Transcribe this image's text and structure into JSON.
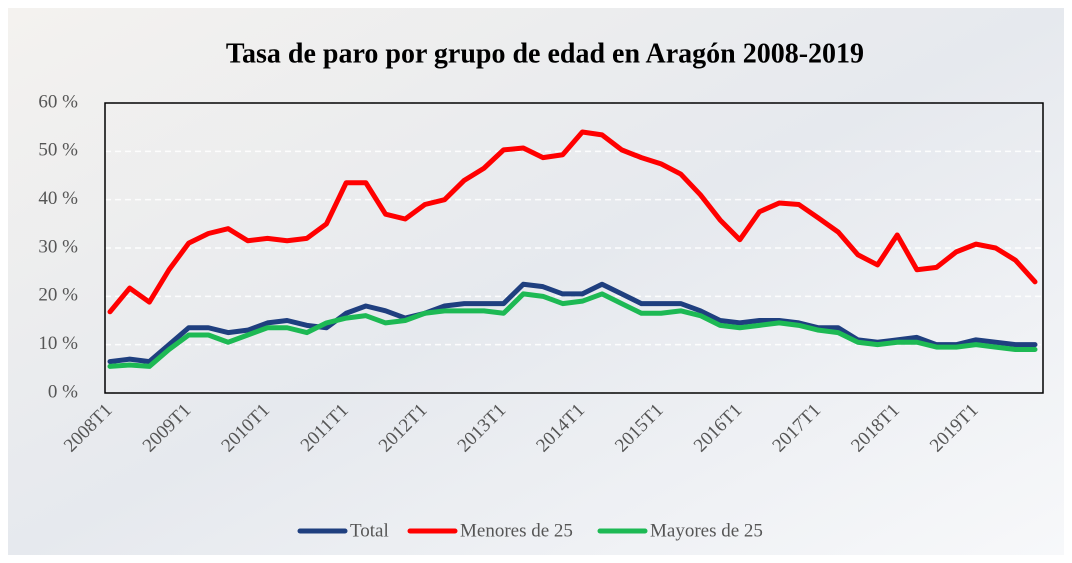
{
  "chart_data": {
    "type": "line",
    "title": "Tasa de paro por grupo de edad en Aragón 2008-2019",
    "categories": [
      "2008T1",
      null,
      null,
      null,
      "2009T1",
      null,
      null,
      null,
      "2010T1",
      null,
      null,
      null,
      "2011T1",
      null,
      null,
      null,
      "2012T1",
      null,
      null,
      null,
      "2013T1",
      null,
      null,
      null,
      "2014T1",
      null,
      null,
      null,
      "2015T1",
      null,
      null,
      null,
      "2016T1",
      null,
      null,
      null,
      "2017T1",
      null,
      null,
      null,
      "2018T1",
      null,
      null,
      null,
      "2019T1",
      null,
      null,
      null
    ],
    "series": [
      {
        "name": "Total",
        "color": "#1f3f7f",
        "values": [
          6.5,
          7,
          6.5,
          10,
          13.5,
          13.5,
          12.5,
          13,
          14.5,
          15,
          14,
          13.5,
          16.5,
          18,
          17,
          15.5,
          16.5,
          18,
          18.5,
          18.5,
          18.5,
          22.5,
          22,
          20.5,
          20.5,
          22.5,
          20.5,
          18.5,
          18.5,
          18.5,
          17,
          15,
          14.5,
          15,
          15,
          14.5,
          13.5,
          13.5,
          11,
          10.5,
          11,
          11.5,
          10,
          10,
          11,
          10.5,
          10,
          10
        ]
      },
      {
        "name": "Menores de 25",
        "color": "#ff0000",
        "values": [
          16.8,
          21.7,
          18.8,
          25.5,
          31,
          33,
          34,
          31.5,
          32,
          31.5,
          32,
          35,
          43.5,
          43.5,
          37,
          36,
          39,
          40,
          44,
          46.5,
          50.3,
          50.7,
          48.7,
          49.3,
          54,
          53.4,
          50.3,
          48.7,
          47.4,
          45.3,
          41,
          35.8,
          31.7,
          37.5,
          39.3,
          39,
          36.2,
          33.3,
          28.6,
          26.5,
          32.7,
          25.5,
          26,
          29.2,
          30.8,
          30,
          27.5,
          23
        ]
      },
      {
        "name": "Mayores de 25",
        "color": "#1db954",
        "values": [
          5.5,
          5.8,
          5.5,
          9,
          12,
          12,
          10.5,
          12,
          13.5,
          13.5,
          12.5,
          14.5,
          15.5,
          16,
          14.5,
          15,
          16.5,
          17,
          17,
          17,
          16.5,
          20.5,
          20,
          18.5,
          19,
          20.5,
          18.5,
          16.5,
          16.5,
          17,
          16,
          14,
          13.5,
          14,
          14.5,
          14,
          13,
          12.5,
          10.5,
          10,
          10.5,
          10.5,
          9.5,
          9.5,
          10,
          9.5,
          9,
          9
        ]
      }
    ],
    "ylim": [
      0,
      60
    ],
    "yticks": [
      {
        "value": 0,
        "label": "0 %"
      },
      {
        "value": 10,
        "label": "10 %"
      },
      {
        "value": 20,
        "label": "20 %"
      },
      {
        "value": 30,
        "label": "30 %"
      },
      {
        "value": 40,
        "label": "40 %"
      },
      {
        "value": 50,
        "label": "50 %"
      },
      {
        "value": 60,
        "label": "60 %"
      }
    ],
    "grid": true,
    "legend": "bottom"
  }
}
